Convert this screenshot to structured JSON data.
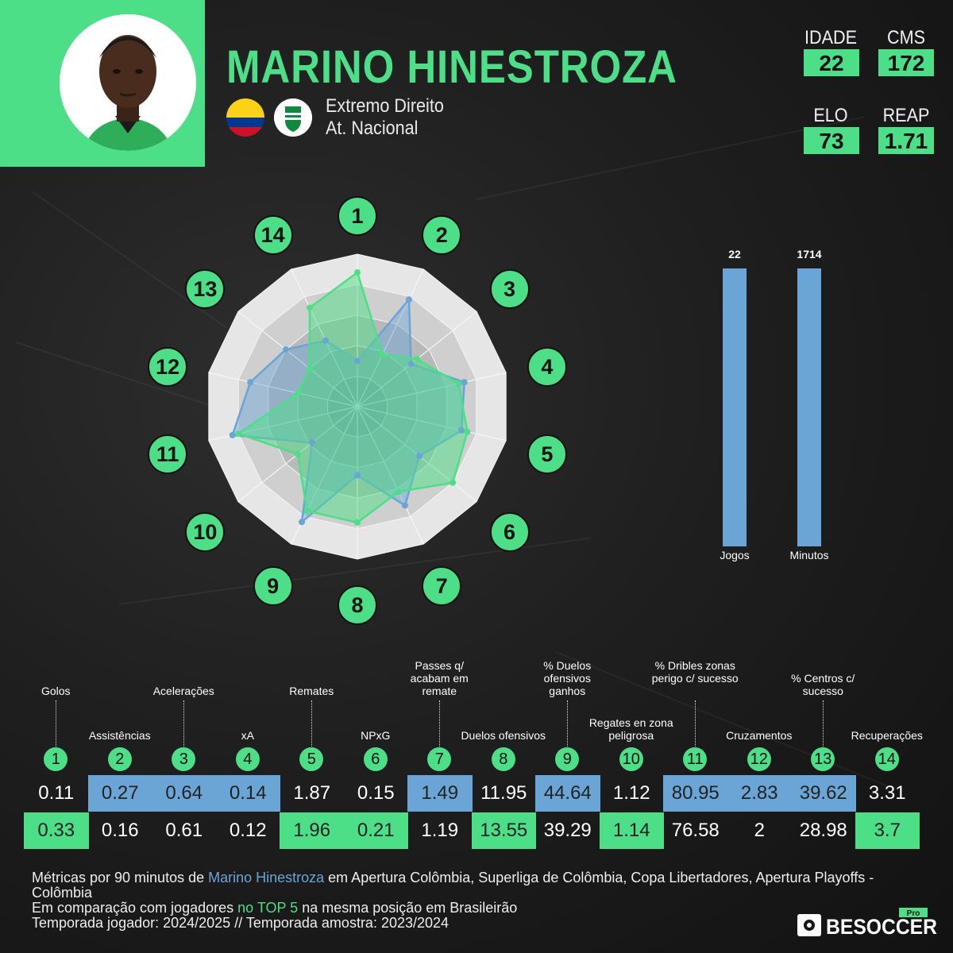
{
  "player": {
    "name": "MARINO HINESTROZA",
    "position": "Extremo Direito",
    "club": "At. Nacional"
  },
  "header_stats": [
    {
      "label": "IDADE",
      "value": "22"
    },
    {
      "label": "CMS",
      "value": "172"
    },
    {
      "label": "ELO",
      "value": "73"
    },
    {
      "label": "REAP",
      "value": "1.71"
    }
  ],
  "colors": {
    "accent": "#4cdf88",
    "player_series": "#6aa5d6",
    "sample_series": "#4cdf88"
  },
  "chart_data": [
    {
      "type": "radar",
      "axes": [
        "1",
        "2",
        "3",
        "4",
        "5",
        "6",
        "7",
        "8",
        "9",
        "10",
        "11",
        "12",
        "13",
        "14"
      ],
      "series": [
        {
          "values": [
            0.3,
            0.78,
            0.45,
            0.72,
            0.7,
            0.52,
            0.72,
            0.45,
            0.84,
            0.38,
            0.84,
            0.72,
            0.6,
            0.48
          ]
        },
        {
          "values": [
            0.88,
            0.38,
            0.5,
            0.68,
            0.74,
            0.8,
            0.62,
            0.76,
            0.76,
            0.5,
            0.8,
            0.4,
            0.4,
            0.72
          ]
        }
      ]
    },
    {
      "type": "bar",
      "categories": [
        "Jogos",
        "Minutos"
      ],
      "values": [
        22,
        1714
      ]
    }
  ],
  "metrics": [
    {
      "n": "1",
      "label": "Golos",
      "player": "0.11",
      "sample": "0.33",
      "player_hl": false,
      "sample_hl": true
    },
    {
      "n": "2",
      "label": "Assistências",
      "player": "0.27",
      "sample": "0.16",
      "player_hl": true,
      "sample_hl": false
    },
    {
      "n": "3",
      "label": "Acelerações",
      "player": "0.64",
      "sample": "0.61",
      "player_hl": true,
      "sample_hl": false
    },
    {
      "n": "4",
      "label": "xA",
      "player": "0.14",
      "sample": "0.12",
      "player_hl": true,
      "sample_hl": false
    },
    {
      "n": "5",
      "label": "Remates",
      "player": "1.87",
      "sample": "1.96",
      "player_hl": false,
      "sample_hl": true
    },
    {
      "n": "6",
      "label": "NPxG",
      "player": "0.15",
      "sample": "0.21",
      "player_hl": false,
      "sample_hl": true
    },
    {
      "n": "7",
      "label": "Passes q/ acabam em remate",
      "player": "1.49",
      "sample": "1.19",
      "player_hl": true,
      "sample_hl": false
    },
    {
      "n": "8",
      "label": "Duelos ofensivos",
      "player": "11.95",
      "sample": "13.55",
      "player_hl": false,
      "sample_hl": true
    },
    {
      "n": "9",
      "label": "% Duelos ofensivos ganhos",
      "player": "44.64",
      "sample": "39.29",
      "player_hl": true,
      "sample_hl": false
    },
    {
      "n": "10",
      "label": "Regates en zona peligrosa",
      "player": "1.12",
      "sample": "1.14",
      "player_hl": false,
      "sample_hl": true
    },
    {
      "n": "11",
      "label": "% Dribles zonas perigo c/ sucesso",
      "player": "80.95",
      "sample": "76.58",
      "player_hl": true,
      "sample_hl": false
    },
    {
      "n": "12",
      "label": "Cruzamentos",
      "player": "2.83",
      "sample": "2",
      "player_hl": true,
      "sample_hl": false
    },
    {
      "n": "13",
      "label": "% Centros c/ sucesso",
      "player": "39.62",
      "sample": "28.98",
      "player_hl": true,
      "sample_hl": false
    },
    {
      "n": "14",
      "label": "Recuperações",
      "player": "3.31",
      "sample": "3.7",
      "player_hl": false,
      "sample_hl": true
    }
  ],
  "footer": {
    "line1_prefix": "Métricas por 90 minutos de ",
    "line1_player": "Marino Hinestroza",
    "line1_suffix": " em Apertura Colômbia, Superliga de Colômbia, Copa Libertadores, Apertura Playoffs - Colômbia",
    "line2_prefix": "Em comparação com jogadores ",
    "line2_highlight": "no TOP 5",
    "line2_suffix": " na mesma posição em Brasileirão",
    "line3": "Temporada jogador: 2024/2025 // Temporada amostra: 2023/2024"
  },
  "logo": {
    "text": "BESOCCER",
    "badge": "Pro"
  }
}
